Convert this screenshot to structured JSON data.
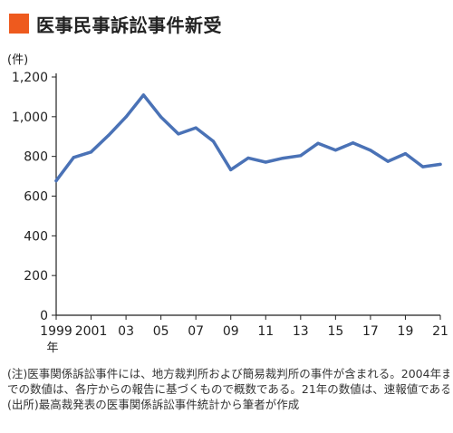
{
  "title": "医事民事訴訟事件新受",
  "colors": {
    "accent": "#ee5a1e",
    "line": "#4a72b6",
    "axis": "#222222",
    "grid": "#e2e2e2"
  },
  "chart_data": {
    "type": "line",
    "ylabel": "(件)",
    "ylim": [
      0,
      1200
    ],
    "yticks": [
      0,
      200,
      400,
      600,
      800,
      1000,
      1200
    ],
    "ytick_labels": [
      "0",
      "200",
      "400",
      "600",
      "800",
      "1,000",
      "1,200"
    ],
    "xlim": [
      1999,
      2021
    ],
    "xticks": [
      {
        "x": 1999,
        "label": "1999"
      },
      {
        "x": 2001,
        "label": "2001"
      },
      {
        "x": 2003,
        "label": "03"
      },
      {
        "x": 2005,
        "label": "05"
      },
      {
        "x": 2007,
        "label": "07"
      },
      {
        "x": 2009,
        "label": "09"
      },
      {
        "x": 2011,
        "label": "11"
      },
      {
        "x": 2013,
        "label": "13"
      },
      {
        "x": 2015,
        "label": "15"
      },
      {
        "x": 2017,
        "label": "17"
      },
      {
        "x": 2019,
        "label": "19"
      },
      {
        "x": 2021,
        "label": "21"
      }
    ],
    "xunit": "年",
    "grid": false,
    "series": [
      {
        "x": [
          1999,
          2000,
          2001,
          2002,
          2003,
          2004,
          2005,
          2006,
          2007,
          2008,
          2009,
          2010,
          2011,
          2012,
          2013,
          2014,
          2015,
          2016,
          2017,
          2018,
          2019,
          2020,
          2021
        ],
        "values": [
          677,
          795,
          822,
          906,
          999,
          1109,
          999,
          913,
          944,
          876,
          733,
          792,
          771,
          791,
          804,
          866,
          832,
          868,
          831,
          775,
          814,
          748,
          760
        ]
      }
    ]
  },
  "notes": [
    "(注)医事関係訴訟事件には、地方裁判所および簡易裁判所の事件が含まれる。2004年ま",
    "での数値は、各庁からの報告に基づくもので概数である。21年の数値は、速報値である",
    "(出所)最高裁発表の医事関係訴訟事件統計から筆者が作成"
  ]
}
